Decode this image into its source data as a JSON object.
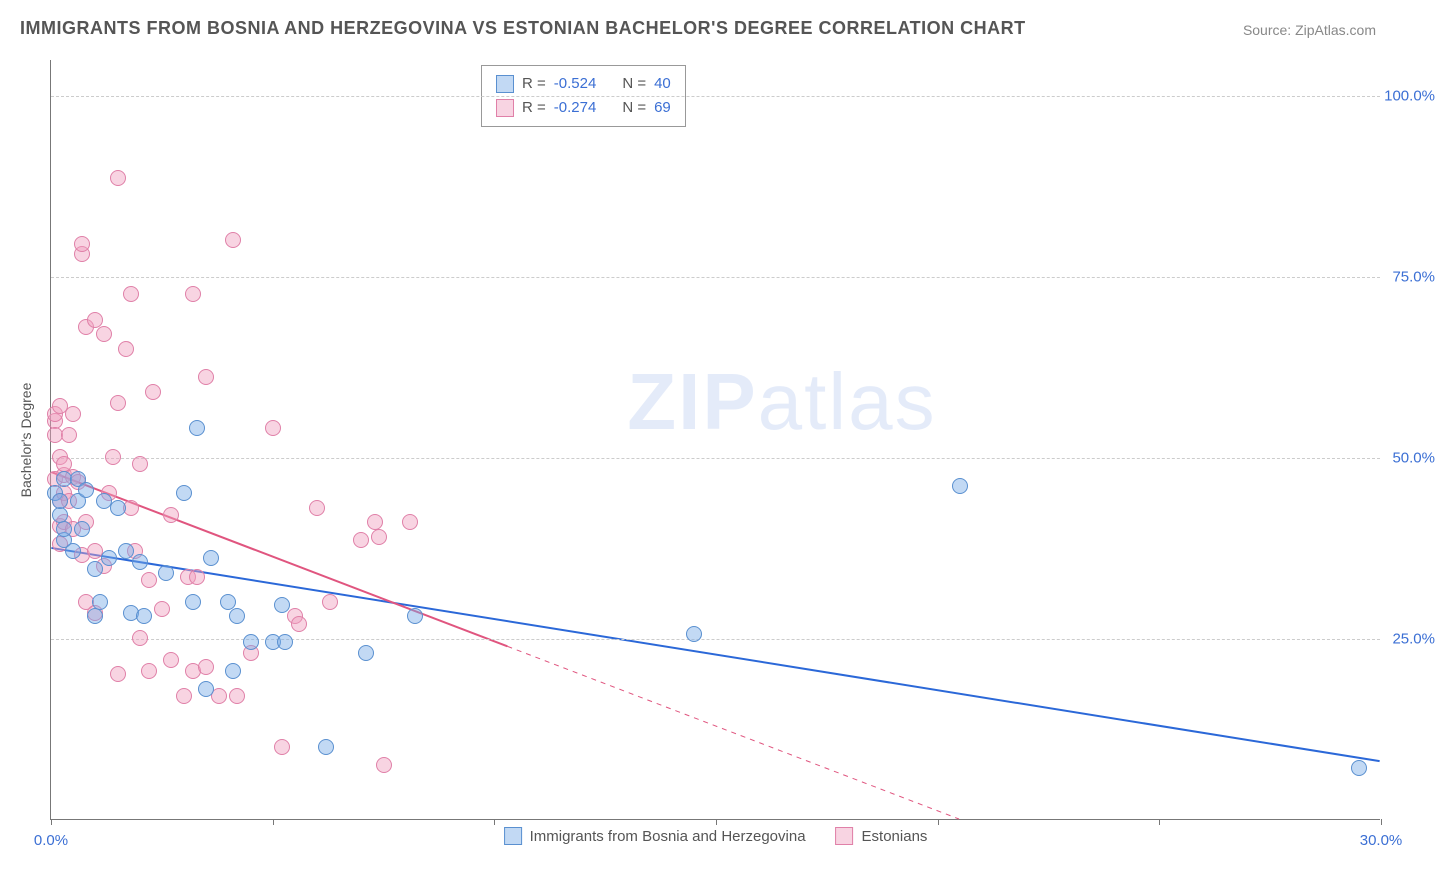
{
  "title": "IMMIGRANTS FROM BOSNIA AND HERZEGOVINA VS ESTONIAN BACHELOR'S DEGREE CORRELATION CHART",
  "source": "Source: ZipAtlas.com",
  "watermark_bold": "ZIP",
  "watermark_rest": "atlas",
  "chart": {
    "type": "scatter",
    "xlim": [
      0,
      30
    ],
    "ylim": [
      0,
      105
    ],
    "xticks": [
      0,
      5,
      10,
      15,
      20,
      25,
      30
    ],
    "xticks_labeled": [
      0,
      30
    ],
    "xtick_labels": {
      "0": "0.0%",
      "30": "30.0%"
    },
    "yticks": [
      25,
      50,
      75,
      100
    ],
    "ytick_labels": [
      "25.0%",
      "50.0%",
      "75.0%",
      "100.0%"
    ],
    "ylabel": "Bachelor's Degree",
    "background_color": "#ffffff",
    "grid_color": "#cccccc",
    "axis_color": "#777777",
    "text_color": "#555555",
    "tick_label_color": "#3b6fd4",
    "point_radius": 8,
    "series": [
      {
        "name": "Immigrants from Bosnia and Herzegovina",
        "color_fill": "rgba(120,170,230,0.45)",
        "color_stroke": "#5a90d0",
        "r_value": "-0.524",
        "n_value": "40",
        "trend": {
          "x1": 0,
          "y1": 37.5,
          "x2": 30,
          "y2": 8,
          "dash_from_x": null,
          "color": "#2b68d8",
          "width": 2
        },
        "points": [
          [
            0.1,
            45
          ],
          [
            0.2,
            42
          ],
          [
            0.2,
            44
          ],
          [
            0.3,
            47
          ],
          [
            0.3,
            38.5
          ],
          [
            0.3,
            40
          ],
          [
            0.5,
            37
          ],
          [
            0.6,
            44
          ],
          [
            0.6,
            47
          ],
          [
            0.7,
            40
          ],
          [
            0.8,
            45.5
          ],
          [
            1.0,
            34.5
          ],
          [
            1.0,
            28
          ],
          [
            1.1,
            30
          ],
          [
            1.2,
            44
          ],
          [
            1.3,
            36
          ],
          [
            1.5,
            43
          ],
          [
            1.7,
            37
          ],
          [
            1.8,
            28.5
          ],
          [
            2.0,
            35.5
          ],
          [
            2.1,
            28
          ],
          [
            2.6,
            34
          ],
          [
            3.0,
            45
          ],
          [
            3.2,
            30
          ],
          [
            3.3,
            54
          ],
          [
            3.5,
            18
          ],
          [
            3.6,
            36
          ],
          [
            4.0,
            30
          ],
          [
            4.1,
            20.5
          ],
          [
            4.2,
            28
          ],
          [
            4.5,
            24.5
          ],
          [
            5.0,
            24.5
          ],
          [
            5.2,
            29.5
          ],
          [
            5.28,
            24.5
          ],
          [
            6.2,
            10
          ],
          [
            7.1,
            23
          ],
          [
            8.2,
            28
          ],
          [
            14.5,
            25.5
          ],
          [
            20.5,
            46
          ],
          [
            29.5,
            7
          ]
        ]
      },
      {
        "name": "Estonians",
        "color_fill": "rgba(240,160,190,0.45)",
        "color_stroke": "#e080a8",
        "r_value": "-0.274",
        "n_value": "69",
        "trend": {
          "x1": 0,
          "y1": 48,
          "x2": 20.5,
          "y2": 0,
          "dash_from_x": 10.3,
          "color": "#e0557f",
          "width": 2
        },
        "points": [
          [
            0.1,
            47
          ],
          [
            0.1,
            55
          ],
          [
            0.1,
            56
          ],
          [
            0.1,
            53
          ],
          [
            0.2,
            57
          ],
          [
            0.2,
            50
          ],
          [
            0.2,
            44
          ],
          [
            0.2,
            40.5
          ],
          [
            0.2,
            38
          ],
          [
            0.3,
            47.5
          ],
          [
            0.3,
            49
          ],
          [
            0.3,
            45
          ],
          [
            0.3,
            41
          ],
          [
            0.4,
            53
          ],
          [
            0.4,
            44
          ],
          [
            0.5,
            56
          ],
          [
            0.5,
            47.3
          ],
          [
            0.5,
            40
          ],
          [
            0.6,
            46.5
          ],
          [
            0.7,
            78
          ],
          [
            0.7,
            79.5
          ],
          [
            0.7,
            36.5
          ],
          [
            0.8,
            68
          ],
          [
            0.8,
            30
          ],
          [
            0.8,
            41
          ],
          [
            1.0,
            69
          ],
          [
            1.0,
            28.5
          ],
          [
            1.0,
            37
          ],
          [
            1.2,
            67
          ],
          [
            1.2,
            35
          ],
          [
            1.3,
            45
          ],
          [
            1.4,
            50
          ],
          [
            1.5,
            88.5
          ],
          [
            1.5,
            57.5
          ],
          [
            1.5,
            20
          ],
          [
            1.7,
            65
          ],
          [
            1.8,
            72.5
          ],
          [
            1.8,
            43
          ],
          [
            2.0,
            49
          ],
          [
            1.9,
            37
          ],
          [
            2.0,
            25
          ],
          [
            2.2,
            33
          ],
          [
            2.2,
            20.5
          ],
          [
            2.3,
            59
          ],
          [
            2.5,
            29
          ],
          [
            2.7,
            22
          ],
          [
            2.7,
            42
          ],
          [
            3.0,
            17
          ],
          [
            3.1,
            33.5
          ],
          [
            3.2,
            72.5
          ],
          [
            3.3,
            33.5
          ],
          [
            3.5,
            61
          ],
          [
            3.2,
            20.5
          ],
          [
            3.5,
            21
          ],
          [
            3.8,
            17
          ],
          [
            4.1,
            80
          ],
          [
            4.2,
            17
          ],
          [
            4.5,
            23
          ],
          [
            5.0,
            54
          ],
          [
            5.5,
            28
          ],
          [
            5.6,
            27
          ],
          [
            6.0,
            43
          ],
          [
            6.3,
            30
          ],
          [
            7.0,
            38.5
          ],
          [
            7.3,
            41
          ],
          [
            7.4,
            39
          ],
          [
            7.5,
            7.5
          ],
          [
            8.1,
            41
          ],
          [
            5.2,
            10
          ]
        ]
      }
    ],
    "legend_stats_rows": [
      {
        "swatch": "blue",
        "r": "-0.524",
        "n": "40"
      },
      {
        "swatch": "pink",
        "r": "-0.274",
        "n": "69"
      }
    ],
    "legend_bottom": [
      {
        "swatch": "blue",
        "label": "Immigrants from Bosnia and Herzegovina"
      },
      {
        "swatch": "pink",
        "label": "Estonians"
      }
    ]
  }
}
